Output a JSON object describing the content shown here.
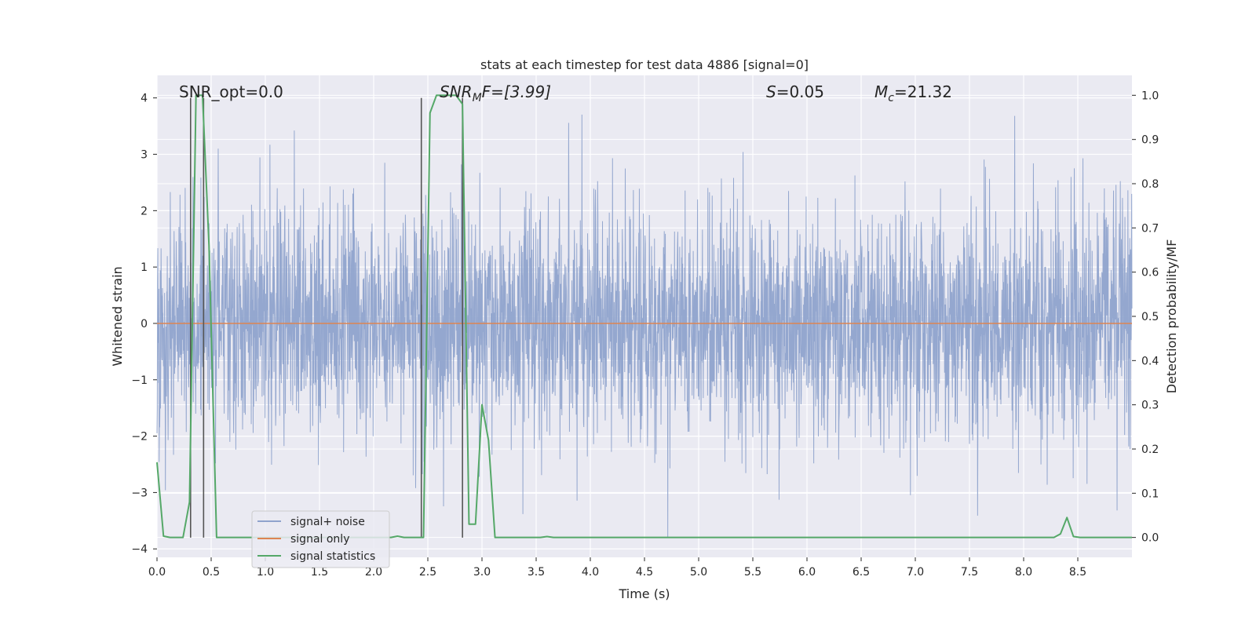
{
  "chart_data": {
    "type": "line",
    "title": "stats at each timestep for test data 4886 [signal=0]",
    "xlabel": "Time (s)",
    "ylabel_left": "Whitened strain",
    "ylabel_right": "Detection probability/MF",
    "xlim": [
      0.0,
      9.0
    ],
    "ylim_left": [
      -4.15,
      4.4
    ],
    "ylim_right": [
      -0.045,
      1.045
    ],
    "xticks": [
      "0.0",
      "0.5",
      "1.0",
      "1.5",
      "2.0",
      "2.5",
      "3.0",
      "3.5",
      "4.0",
      "4.5",
      "5.0",
      "5.5",
      "6.0",
      "6.5",
      "7.0",
      "7.5",
      "8.0",
      "8.5"
    ],
    "yticks_left": [
      "4",
      "3",
      "2",
      "1",
      "0",
      "−1",
      "−2",
      "−3",
      "−4"
    ],
    "yticks_right": [
      "1.0",
      "0.9",
      "0.8",
      "0.7",
      "0.6",
      "0.5",
      "0.4",
      "0.3",
      "0.2",
      "0.1",
      "0.0"
    ],
    "grid": true,
    "legend_placement": "lower-left",
    "annotations": {
      "snr_opt": "SNR_opt=0.0",
      "snr_mf_main": "SNR",
      "snr_mf_sub": "M",
      "snr_mf_rest": "F=[3.99]",
      "s_main": "S",
      "s_rest": "=0.05",
      "mc_main": "M",
      "mc_sub": "c",
      "mc_rest": "=21.32"
    },
    "series": [
      {
        "name": "signal+ noise",
        "color": "#8fa3cc",
        "axis": "left",
        "description_values": "whitened noise, approx. range -3.8 to 4.0, mostly within ±2.5",
        "sample_rate_hz": 400,
        "envelope_std": 1.0
      },
      {
        "name": "signal only",
        "color": "#dd8452",
        "axis": "left",
        "x": [
          0.0,
          9.0
        ],
        "y": [
          0.0,
          0.0
        ]
      },
      {
        "name": "signal statistics",
        "color": "#55a868",
        "axis": "right",
        "x": [
          0.0,
          0.06,
          0.12,
          0.18,
          0.24,
          0.3,
          0.36,
          0.42,
          0.48,
          0.55,
          0.6,
          0.66,
          0.72,
          0.78,
          0.84,
          0.9,
          0.96,
          1.02,
          1.08,
          1.14,
          1.2,
          1.26,
          1.32,
          1.38,
          1.44,
          1.5,
          1.56,
          1.62,
          1.68,
          1.74,
          1.8,
          1.86,
          1.92,
          1.98,
          2.04,
          2.1,
          2.16,
          2.22,
          2.28,
          2.34,
          2.4,
          2.46,
          2.52,
          2.58,
          2.64,
          2.7,
          2.76,
          2.82,
          2.88,
          2.94,
          3.0,
          3.06,
          3.12,
          3.18,
          3.24,
          3.3,
          3.36,
          3.42,
          3.48,
          3.54,
          3.6,
          3.66,
          3.72,
          3.78,
          3.84,
          3.9,
          3.96,
          4.02,
          4.08,
          4.14,
          4.2,
          4.26,
          4.32,
          4.38,
          4.44,
          4.5,
          4.56,
          4.62,
          4.68,
          4.74,
          4.8,
          4.86,
          4.92,
          4.98,
          5.04,
          5.1,
          5.16,
          5.22,
          5.28,
          5.34,
          5.4,
          5.46,
          5.52,
          5.58,
          5.64,
          5.7,
          5.76,
          5.82,
          5.88,
          5.94,
          6.0,
          6.06,
          6.12,
          6.18,
          6.24,
          6.3,
          6.36,
          6.42,
          6.48,
          6.54,
          6.6,
          6.66,
          6.72,
          6.78,
          6.84,
          6.9,
          6.96,
          7.02,
          7.08,
          7.14,
          7.2,
          7.26,
          7.32,
          7.38,
          7.44,
          7.5,
          7.56,
          7.62,
          7.68,
          7.74,
          7.8,
          7.86,
          7.92,
          7.98,
          8.04,
          8.1,
          8.16,
          8.22,
          8.28,
          8.34,
          8.4,
          8.46,
          8.52,
          8.58,
          8.64,
          8.7,
          8.76,
          8.82,
          8.88,
          8.94,
          9.0
        ],
        "y": [
          0.17,
          0.003,
          0.0,
          0.0,
          0.0,
          0.08,
          1.0,
          1.0,
          0.66,
          0.0,
          0.0,
          0.0,
          0.0,
          0.0,
          0.0,
          0.0,
          0.0,
          0.0,
          0.0,
          0.0,
          0.0,
          0.0,
          0.0,
          0.0,
          0.0,
          0.0,
          0.0,
          0.0,
          0.0,
          0.0,
          0.0,
          0.0,
          0.0,
          0.0,
          0.0,
          0.0,
          0.0,
          0.003,
          0.0,
          0.0,
          0.0,
          0.0,
          0.96,
          1.0,
          1.0,
          1.0,
          1.0,
          0.98,
          0.03,
          0.03,
          0.3,
          0.22,
          0.0,
          0.0,
          0.0,
          0.0,
          0.0,
          0.0,
          0.0,
          0.0,
          0.002,
          0.0,
          0.0,
          0.0,
          0.0,
          0.0,
          0.0,
          0.0,
          0.0,
          0.0,
          0.0,
          0.0,
          0.0,
          0.0,
          0.0,
          0.0,
          0.0,
          0.0,
          0.0,
          0.0,
          0.0,
          0.0,
          0.0,
          0.0,
          0.0,
          0.0,
          0.0,
          0.0,
          0.0,
          0.0,
          0.0,
          0.0,
          0.0,
          0.0,
          0.0,
          0.0,
          0.0,
          0.0,
          0.0,
          0.0,
          0.0,
          0.0,
          0.0,
          0.0,
          0.0,
          0.0,
          0.0,
          0.0,
          0.0,
          0.0,
          0.0,
          0.0,
          0.0,
          0.0,
          0.0,
          0.0,
          0.0,
          0.0,
          0.0,
          0.0,
          0.0,
          0.0,
          0.0,
          0.0,
          0.0,
          0.0,
          0.0,
          0.0,
          0.0,
          0.0,
          0.0,
          0.0,
          0.0,
          0.0,
          0.0,
          0.0,
          0.0,
          0.0,
          0.0,
          0.008,
          0.045,
          0.002,
          0.0,
          0.0,
          0.0,
          0.0,
          0.0,
          0.0,
          0.0,
          0.0,
          0.0
        ]
      }
    ],
    "vertical_markers": {
      "color": "#555555",
      "x": [
        0.31,
        0.43,
        2.44,
        2.82
      ],
      "y_top": [
        4.0,
        4.0,
        4.0,
        4.0
      ],
      "y_bottom": [
        -3.8,
        -3.8,
        -3.8,
        -3.8
      ]
    },
    "colors": {
      "plot_background": "#eaeaf2",
      "grid": "#ffffff"
    }
  }
}
